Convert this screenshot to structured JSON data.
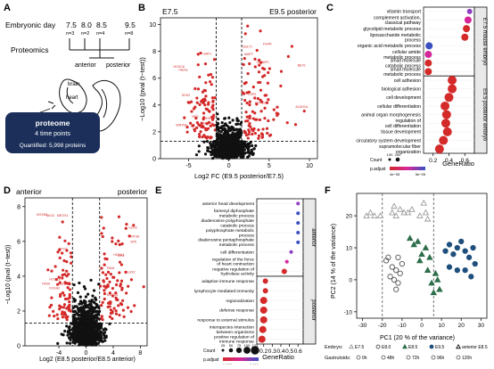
{
  "figure": {
    "panel_labels": [
      "A",
      "B",
      "C",
      "D",
      "E",
      "F"
    ],
    "colors": {
      "red": "#d42a2a",
      "black": "#111111",
      "navy": "#1b2f5a",
      "purple": "#8e3fc2",
      "blue": "#3a4fc0",
      "magenta": "#d6279a",
      "green": "#2e6e4a",
      "darkblue": "#1f4f7c",
      "gray": "#9b9b9b"
    }
  },
  "panel_a": {
    "row1_label": "Embryonic day",
    "days": [
      "7.5",
      "8.0",
      "8.5",
      "9.5"
    ],
    "ns": [
      "n=3",
      "n=2",
      "n=4",
      "n=8"
    ],
    "row2_label": "Proteomics",
    "anterior": "anterior",
    "posterior": "posterior",
    "brain": "brain",
    "heart": "heart",
    "box_title": "proteome",
    "box_sub": "4 time points",
    "box_quant": "Quantified: 5,998 proteins"
  },
  "chart_data": [
    {
      "id": "B",
      "type": "scatter",
      "title_left": "E7.5",
      "title_right": "E9.5 posterior",
      "xlabel": "Log2 FC (E9.5 posterior/E7.5)",
      "ylabel": "−Log10 (pval (t−test))",
      "xlim": [
        -8.5,
        11
      ],
      "ylim": [
        0,
        10.5
      ],
      "xticks": [
        -5,
        0,
        5,
        10
      ],
      "yticks": [
        0,
        2,
        4,
        6,
        8,
        10
      ],
      "vlines": [
        -1.585,
        1.585
      ],
      "hline": 1.3
    },
    {
      "id": "C",
      "type": "dot",
      "xlabel": "GeneRatio",
      "xticks": [
        "0.2",
        "0.4",
        "0.6"
      ],
      "xlim": [
        0.08,
        0.72
      ],
      "group_top": "E7.5 mouse embryo",
      "group_bottom": "E9.5 posterior embryo",
      "rows": [
        {
          "label": "vitamin transport",
          "x": 0.66,
          "size": 3,
          "color": "#8e3fc2"
        },
        {
          "label": "complement activation, classical pathway",
          "x": 0.64,
          "size": 4,
          "color": "#d6279a"
        },
        {
          "label": "glycolipid metabolic process",
          "x": 0.62,
          "size": 4,
          "color": "#d42a2a"
        },
        {
          "label": "liposaccharide metabolic process",
          "x": 0.6,
          "size": 4,
          "color": "#d42a2a"
        },
        {
          "label": "organic acid metabolic process",
          "x": 0.15,
          "size": 4,
          "color": "#3a4fc0"
        },
        {
          "label": "cellular amide metabolic process",
          "x": 0.14,
          "size": 4,
          "color": "#d6279a"
        },
        {
          "label": "small molecule catabolic process",
          "x": 0.14,
          "size": 4,
          "color": "#d42a2a"
        },
        {
          "label": "small molecule metabolic process",
          "x": 0.14,
          "size": 4,
          "color": "#d42a2a"
        },
        {
          "label": "cell adhesion",
          "x": 0.44,
          "size": 5,
          "color": "#d42a2a"
        },
        {
          "label": "biological adhesion",
          "x": 0.44,
          "size": 5,
          "color": "#d42a2a"
        },
        {
          "label": "cell development",
          "x": 0.4,
          "size": 5,
          "color": "#d42a2a"
        },
        {
          "label": "cellular differentiation",
          "x": 0.35,
          "size": 5,
          "color": "#d42a2a"
        },
        {
          "label": "animal organ morphogenesis",
          "x": 0.37,
          "size": 5,
          "color": "#d42a2a"
        },
        {
          "label": "regulation of cell differentiation",
          "x": 0.36,
          "size": 5,
          "color": "#d42a2a"
        },
        {
          "label": "tissue development",
          "x": 0.38,
          "size": 5,
          "color": "#d42a2a"
        },
        {
          "label": "circulatory system development",
          "x": 0.33,
          "size": 5,
          "color": "#d42a2a"
        },
        {
          "label": "supramolecular fiber organization",
          "x": 0.28,
          "size": 5,
          "color": "#d42a2a"
        }
      ],
      "legend_count_label": "Count",
      "legend_count_values": [
        "100",
        "200"
      ],
      "legend_padj_label": "p.adjust",
      "legend_padj_values": [
        "4e−05",
        "5e−05"
      ]
    },
    {
      "id": "D",
      "type": "scatter",
      "title_left": "anterior",
      "title_right": "posterior",
      "xlabel": "Log2 (E8.5 posterior/E8.5 anterior)",
      "ylabel": "−Log10 (pval (t−test))",
      "xlim": [
        -9,
        9
      ],
      "ylim": [
        0,
        8.5
      ],
      "xticks": [
        -4,
        0,
        4,
        8
      ],
      "yticks": [
        0,
        2,
        4,
        6,
        8
      ],
      "vlines": [
        -2,
        2
      ],
      "hline": 1.3
    },
    {
      "id": "E",
      "type": "dot",
      "xlabel": "GeneRatio",
      "xticks": [
        "0.2",
        "0.3",
        "0.4",
        "0.5",
        "0.6"
      ],
      "xlim": [
        0.12,
        0.66
      ],
      "group_top": "anterior",
      "group_bottom": "posterior",
      "rows": [
        {
          "label": "anterior head development",
          "x": 0.6,
          "size": 2,
          "color": "#8e3fc2"
        },
        {
          "label": "farnesyl diphosphate metabolic process",
          "x": 0.6,
          "size": 2,
          "color": "#3a4fc0"
        },
        {
          "label": "diadenosine polyphosphate catabolic process",
          "x": 0.6,
          "size": 2,
          "color": "#3a4fc0"
        },
        {
          "label": "polyphosphate metabolic process",
          "x": 0.6,
          "size": 2,
          "color": "#3a4fc0"
        },
        {
          "label": "diadenosine pentaphosphate metabolic process",
          "x": 0.6,
          "size": 2,
          "color": "#3a4fc0"
        },
        {
          "label": "cell differentiation",
          "x": 0.52,
          "size": 2,
          "color": "#8e3fc2"
        },
        {
          "label": "regulation of the force of heart contraction",
          "x": 0.47,
          "size": 2,
          "color": "#d6279a"
        },
        {
          "label": "negative regulation of hydrolase activity",
          "x": 0.44,
          "size": 3,
          "color": "#d42a2a"
        },
        {
          "label": "adaptive immune response",
          "x": 0.22,
          "size": 3,
          "color": "#d42a2a"
        },
        {
          "label": "lymphocyte mediated immunity",
          "x": 0.22,
          "size": 3,
          "color": "#d42a2a"
        },
        {
          "label": "regionalization",
          "x": 0.2,
          "size": 4,
          "color": "#d42a2a"
        },
        {
          "label": "defense response",
          "x": 0.2,
          "size": 4,
          "color": "#d42a2a"
        },
        {
          "label": "response to external stimulus",
          "x": 0.2,
          "size": 4,
          "color": "#d42a2a"
        },
        {
          "label": "interspecies interaction between organisms",
          "x": 0.19,
          "size": 4,
          "color": "#d42a2a"
        },
        {
          "label": "positive regulation of immune response",
          "x": 0.18,
          "size": 4,
          "color": "#d42a2a"
        }
      ],
      "legend_count_label": "Count",
      "legend_count_values": [
        "25",
        "50",
        "75",
        "100",
        "125"
      ],
      "legend_padj_label": "p.adjust",
      "legend_padj_values": [
        "0.003",
        "0.006"
      ]
    },
    {
      "id": "F",
      "type": "scatter",
      "xlabel": "PC1 (20 % of the variance)",
      "ylabel": "PC2 (14 % of the variance)",
      "xlim": [
        -33,
        33
      ],
      "ylim": [
        -12,
        27
      ],
      "xticks": [
        -30,
        -20,
        -10,
        0,
        10,
        20,
        30
      ],
      "yticks": [
        -10,
        0,
        10,
        20
      ],
      "vlines": [
        -20,
        6
      ],
      "series": [
        {
          "name": "E7.5",
          "marker": "triangle-open",
          "color": "#9b9b9b",
          "points": [
            [
              -28,
              20
            ],
            [
              -26,
              21
            ],
            [
              -24,
              20
            ],
            [
              -21,
              20
            ],
            [
              -15,
              21
            ],
            [
              -13,
              20
            ],
            [
              -11,
              22
            ],
            [
              -9,
              21
            ],
            [
              -7,
              21
            ],
            [
              -5,
              22
            ],
            [
              -1,
              20
            ],
            [
              2,
              21
            ],
            [
              1,
              24
            ],
            [
              3,
              19
            ],
            [
              -14,
              23
            ]
          ]
        },
        {
          "name": "E8.0",
          "marker": "circle-open",
          "color": "#555555",
          "points": [
            [
              -18,
              6
            ],
            [
              -17,
              7
            ],
            [
              -15,
              4
            ],
            [
              -13,
              3
            ],
            [
              -12,
              7
            ],
            [
              -16,
              1
            ],
            [
              -14,
              0
            ],
            [
              -12,
              -1
            ],
            [
              -11,
              2
            ],
            [
              -13,
              -3
            ],
            [
              -10,
              5
            ]
          ]
        },
        {
          "name": "E8.5",
          "marker": "triangle-filled",
          "color": "#2e6e4a",
          "points": [
            [
              -6,
              13
            ],
            [
              -4,
              11
            ],
            [
              -2,
              12
            ],
            [
              0,
              8
            ],
            [
              2,
              10
            ],
            [
              -1,
              6
            ],
            [
              3,
              3
            ],
            [
              5,
              -1
            ],
            [
              6,
              -4
            ],
            [
              8,
              0
            ],
            [
              7,
              2
            ],
            [
              9,
              -3
            ],
            [
              4,
              7
            ]
          ]
        },
        {
          "name": "E9.5",
          "marker": "circle-filled",
          "color": "#1f4f7c",
          "points": [
            [
              12,
              9
            ],
            [
              14,
              11
            ],
            [
              16,
              8
            ],
            [
              18,
              10
            ],
            [
              20,
              12
            ],
            [
              22,
              9
            ],
            [
              24,
              7
            ],
            [
              26,
              10
            ],
            [
              14,
              4
            ],
            [
              18,
              3
            ],
            [
              22,
              3
            ],
            [
              27,
              5
            ],
            [
              25,
              1
            ]
          ]
        }
      ],
      "legend_embryo_label": "Embryo:",
      "legend_embryo_items": [
        "E7.5",
        "E8.0",
        "E8.5",
        "E9.5",
        "anterior E8.5"
      ],
      "legend_gastruloids_label": "Gastruloids:",
      "legend_gastruloids_items": [
        "0h",
        "48h",
        "72h",
        "96h",
        "120h"
      ]
    }
  ],
  "volcano_B_labels": [
    "BAF1",
    "HOXB3",
    "PRPH",
    "CSP2",
    "SOX2",
    "SULT1",
    "ANXA2",
    "FGFR",
    "HSPA2",
    "BEX1",
    "WNT5A",
    "MAPT",
    "HOXC6",
    "ALDH1A",
    "NES",
    "CRABP1"
  ],
  "volcano_D_labels": [
    "FOXA2",
    "SIX3",
    "OTX2",
    "LHX2",
    "HOXB9",
    "CDX2",
    "PAX6",
    "HOXA1",
    "FGF8",
    "TBX6",
    "MEOX1",
    "WNT3A",
    "NKX2",
    "MSGN1",
    "HOXC8",
    "SP5"
  ]
}
